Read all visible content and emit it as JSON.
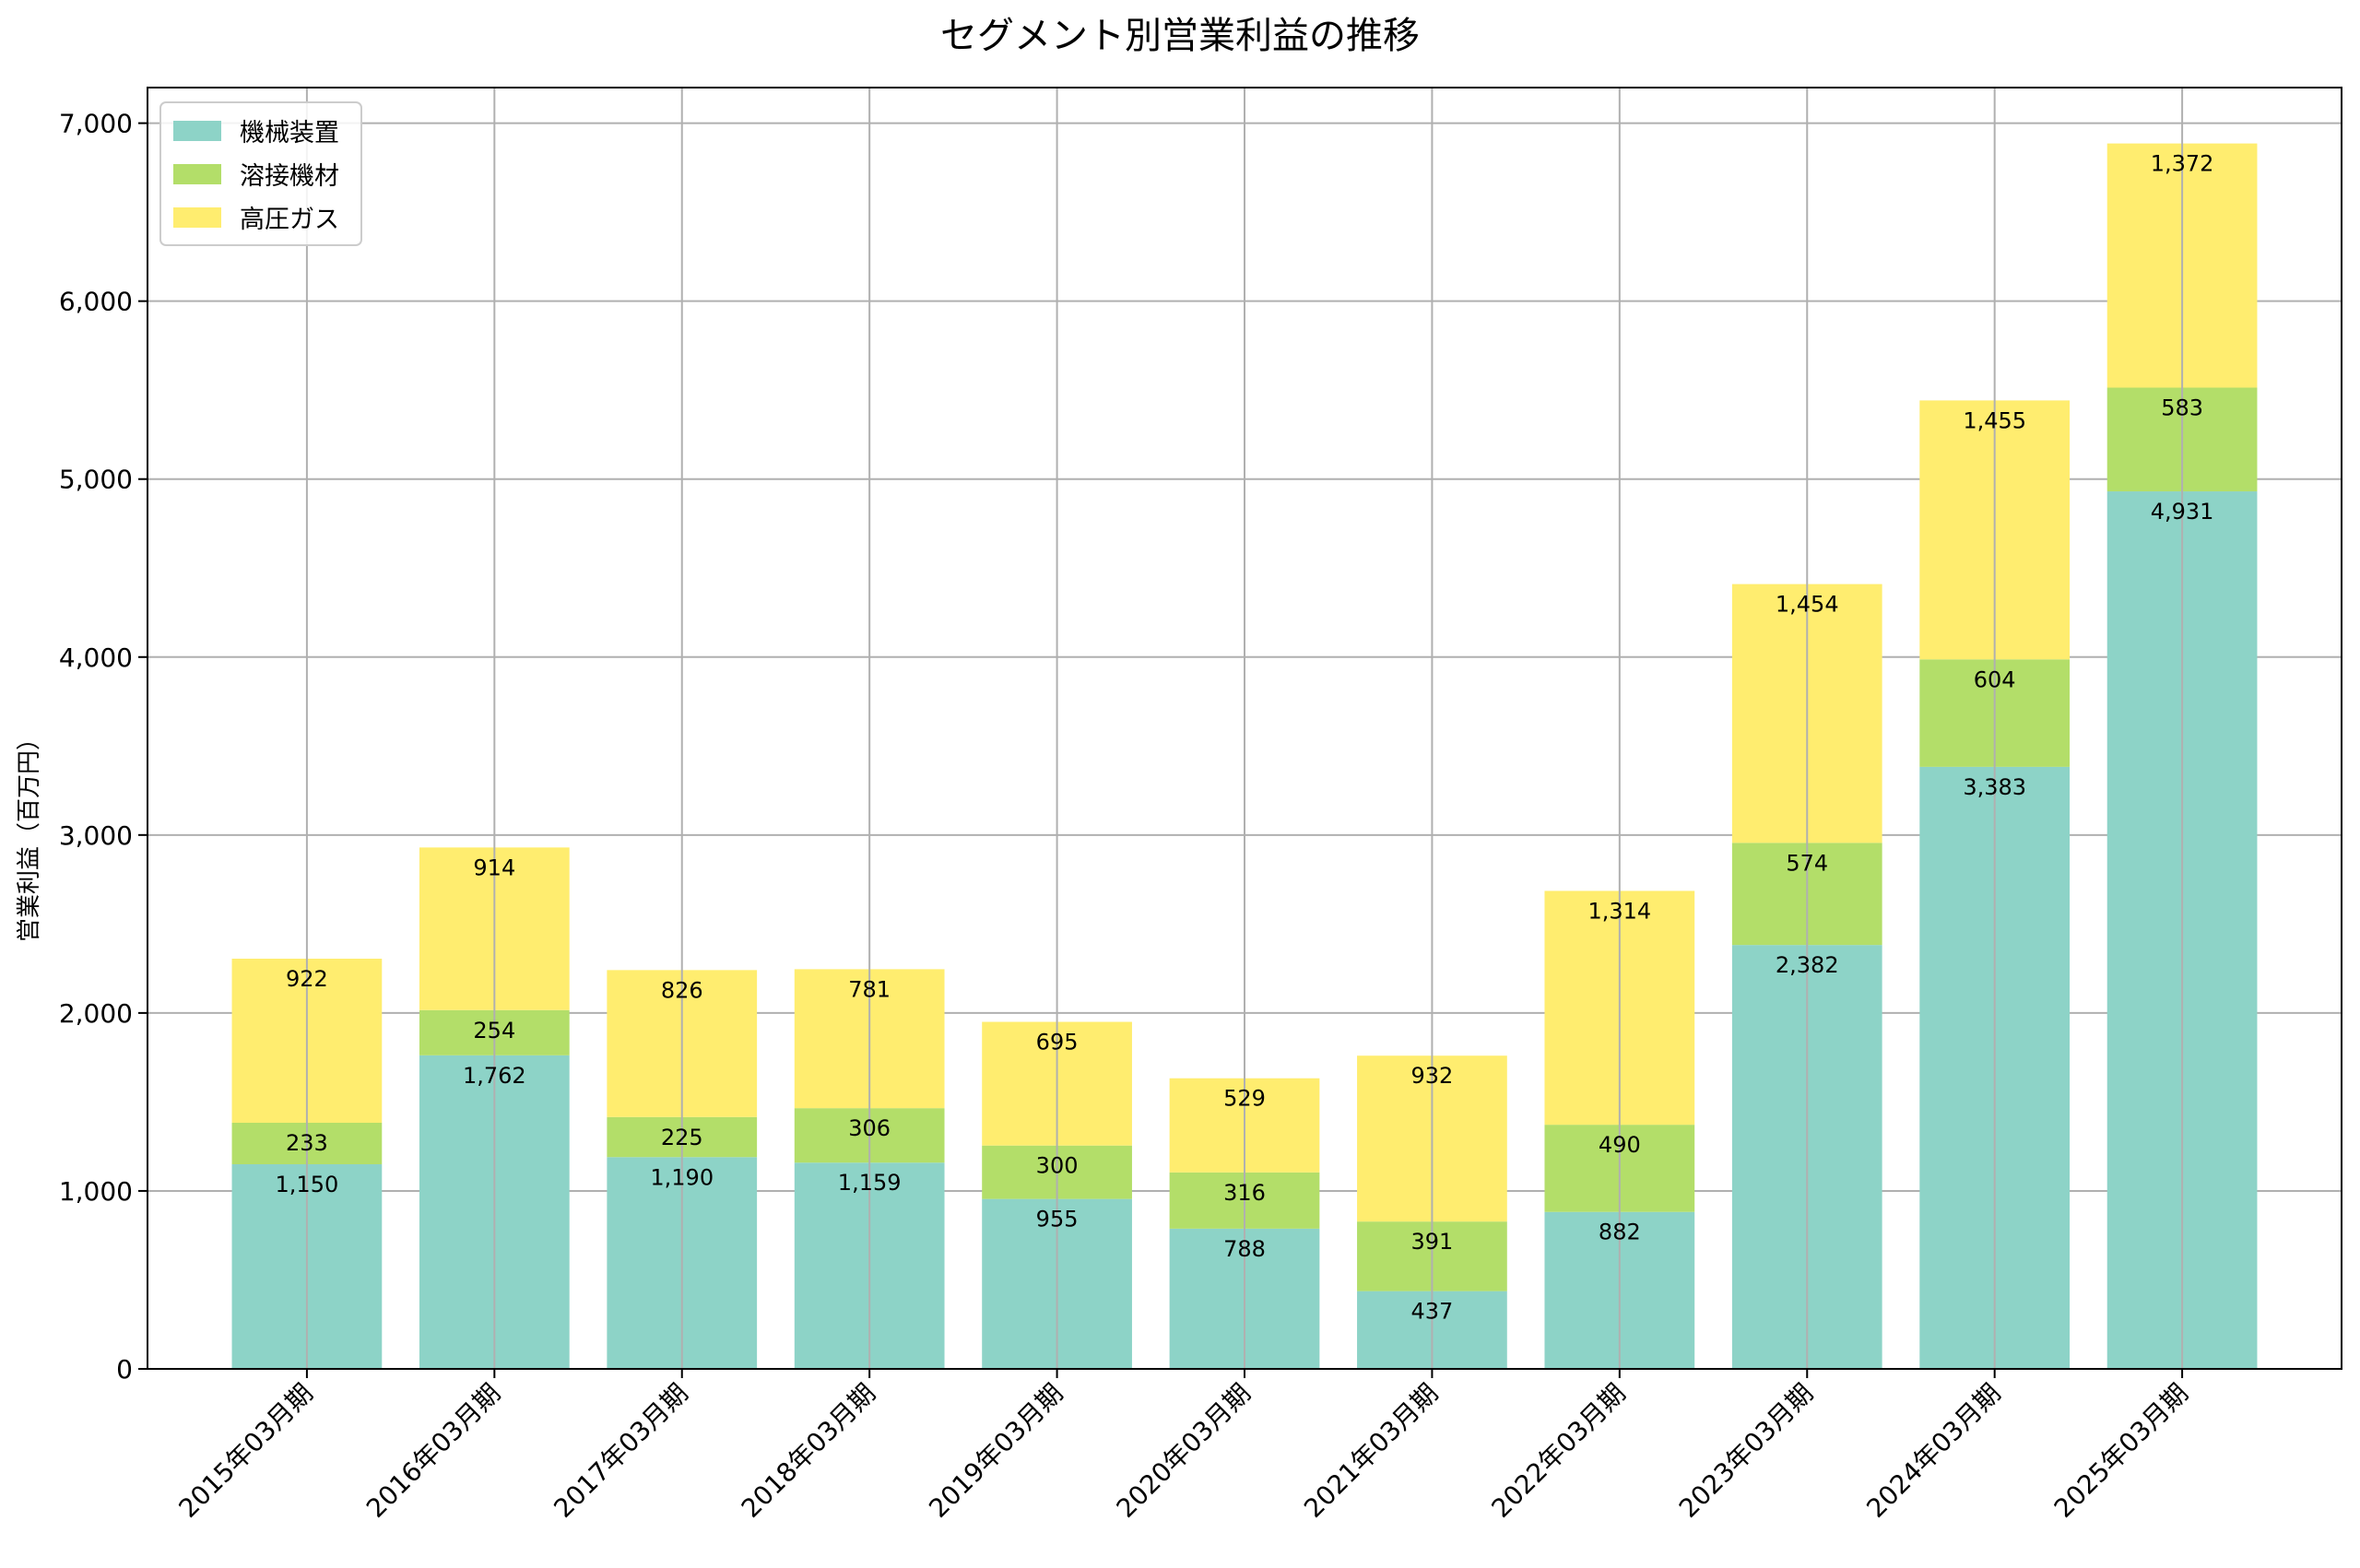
{
  "chart_data": {
    "type": "bar",
    "stacked": true,
    "title": "セグメント別営業利益の推移",
    "xlabel": "",
    "ylabel": "営業利益（百万円）",
    "ylim": [
      0,
      7200
    ],
    "yticks": [
      0,
      1000,
      2000,
      3000,
      4000,
      5000,
      6000,
      7000
    ],
    "ytick_labels": [
      "0",
      "1,000",
      "2,000",
      "3,000",
      "4,000",
      "5,000",
      "6,000",
      "7,000"
    ],
    "grid": true,
    "legend_position": "top-left",
    "categories": [
      "2015年03月期",
      "2016年03月期",
      "2017年03月期",
      "2018年03月期",
      "2019年03月期",
      "2020年03月期",
      "2021年03月期",
      "2022年03月期",
      "2023年03月期",
      "2024年03月期",
      "2025年03月期"
    ],
    "series": [
      {
        "name": "機械装置",
        "color": "#8dd3c7",
        "values": [
          1150,
          1762,
          1190,
          1159,
          955,
          788,
          437,
          882,
          2382,
          3383,
          4931
        ]
      },
      {
        "name": "溶接機材",
        "color": "#b3de69",
        "values": [
          233,
          254,
          225,
          306,
          300,
          316,
          391,
          490,
          574,
          604,
          583
        ]
      },
      {
        "name": "高圧ガス",
        "color": "#ffed6f",
        "values": [
          922,
          914,
          826,
          781,
          695,
          529,
          932,
          1314,
          1454,
          1455,
          1372
        ]
      }
    ]
  }
}
